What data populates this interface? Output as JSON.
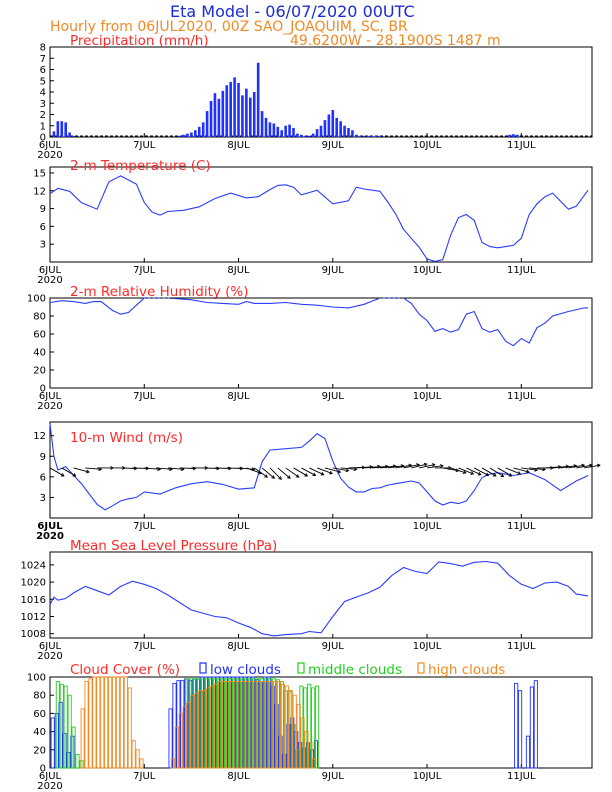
{
  "header": {
    "title": "Eta Model - 06/07/2020 00UTC",
    "subtitle": "Hourly from 06JUL2020, 00Z  SAO_JOAQUIM, SC, BR",
    "coords": "49.6200W - 28.1900S   1487  m"
  },
  "colors": {
    "title": "#1a2bd8",
    "label": "#ff2a2a",
    "orange": "#f08a24",
    "line": "#2a3cff",
    "low": "#2030ff",
    "mid": "#20d020",
    "high": "#f08a24"
  },
  "chart_data": [
    {
      "type": "bar",
      "title": "Precipitation (mm/h)",
      "ylim": [
        0,
        8
      ],
      "yticks": [
        "0",
        "1",
        "2",
        "3",
        "4",
        "5",
        "6",
        "7",
        "8"
      ],
      "xticks": [
        "6JUL",
        "7JUL",
        "8JUL",
        "9JUL",
        "10JUL",
        "11JUL"
      ],
      "xtick_sub": "2020",
      "x_hours": [
        1,
        2,
        3,
        4,
        5,
        6,
        33,
        34,
        35,
        36,
        37,
        38,
        39,
        40,
        41,
        42,
        43,
        44,
        45,
        46,
        47,
        48,
        49,
        50,
        51,
        52,
        53,
        54,
        55,
        56,
        57,
        58,
        59,
        60,
        61,
        62,
        63,
        64,
        65,
        66,
        67,
        68,
        69,
        70,
        71,
        72,
        73,
        74,
        75,
        76,
        77,
        78,
        79,
        80,
        81,
        82,
        83,
        84,
        117,
        118,
        119
      ],
      "values": [
        0.5,
        1.4,
        1.4,
        1.3,
        0.4,
        0.1,
        0.1,
        0.2,
        0.3,
        0.4,
        0.6,
        0.9,
        1.3,
        2.3,
        3.2,
        3.9,
        3.4,
        4.1,
        4.6,
        4.9,
        5.3,
        4.8,
        3.7,
        4.3,
        3.5,
        4.0,
        6.6,
        2.3,
        1.7,
        1.3,
        1.2,
        0.9,
        0.6,
        1.0,
        1.1,
        0.8,
        0.3,
        0.2,
        0.1,
        0.1,
        0.3,
        0.7,
        1.0,
        1.5,
        2.0,
        2.4,
        1.7,
        1.4,
        1.0,
        0.8,
        0.6,
        0.2,
        0.1,
        0.1,
        0.1,
        0.1,
        0.1,
        0.1,
        0.2,
        0.25,
        0.2
      ]
    },
    {
      "type": "line",
      "title": "2-m Temperature (C)",
      "ylim": [
        0,
        16
      ],
      "yticks": [
        "3",
        "6",
        "9",
        "12",
        "15"
      ],
      "xticks": [
        "6JUL",
        "7JUL",
        "8JUL",
        "9JUL",
        "10JUL",
        "11JUL"
      ],
      "xtick_sub": "2020",
      "x": [
        0,
        2,
        5,
        8,
        12,
        15,
        18,
        22,
        24,
        26,
        28,
        30,
        34,
        38,
        42,
        46,
        50,
        53,
        56,
        58,
        60,
        62,
        64,
        68,
        72,
        76,
        78,
        80,
        84,
        86,
        88,
        90,
        92,
        94,
        96,
        98,
        100,
        102,
        104,
        106,
        108,
        110,
        112,
        114,
        116,
        118,
        120,
        122,
        124,
        126,
        128,
        132,
        134,
        137
      ],
      "values": [
        11.5,
        12.4,
        11.9,
        10.0,
        8.9,
        13.5,
        14.5,
        13.1,
        10.0,
        8.4,
        7.9,
        8.5,
        8.7,
        9.3,
        10.7,
        11.6,
        10.8,
        11.0,
        12.2,
        12.9,
        13.0,
        12.6,
        11.3,
        12.1,
        9.8,
        10.3,
        12.6,
        12.3,
        11.9,
        10.1,
        8.1,
        5.5,
        4.0,
        2.5,
        0.5,
        0.1,
        0.4,
        4.5,
        7.5,
        8.0,
        7.0,
        3.3,
        2.6,
        2.4,
        2.6,
        2.8,
        4.0,
        8.0,
        9.8,
        11.0,
        11.6,
        8.9,
        9.4,
        12.1
      ]
    },
    {
      "type": "line",
      "title": "2-m Relative Humidity (%)",
      "ylim": [
        0,
        100
      ],
      "yticks": [
        "0",
        "20",
        "40",
        "60",
        "80",
        "100"
      ],
      "xticks": [
        "6JUL",
        "7JUL",
        "8JUL",
        "9JUL",
        "10JUL",
        "11JUL"
      ],
      "xtick_sub": "2020",
      "x": [
        0,
        3,
        6,
        9,
        11,
        13,
        16,
        18,
        20,
        22,
        24,
        26,
        30,
        36,
        40,
        44,
        48,
        50,
        52,
        56,
        60,
        64,
        68,
        72,
        76,
        80,
        84,
        88,
        90,
        92,
        94,
        96,
        98,
        100,
        102,
        104,
        106,
        108,
        110,
        112,
        114,
        116,
        118,
        120,
        122,
        124,
        126,
        128,
        132,
        136,
        137
      ],
      "values": [
        95,
        97,
        96,
        94,
        96,
        96,
        86,
        82,
        84,
        92,
        100,
        100,
        100,
        98,
        95,
        94,
        93,
        96,
        94,
        94,
        95,
        93,
        92,
        90,
        89,
        93,
        100,
        100,
        100,
        94,
        82,
        75,
        63,
        66,
        62,
        65,
        82,
        85,
        66,
        62,
        65,
        52,
        47,
        55,
        50,
        67,
        72,
        80,
        85,
        89,
        89
      ]
    },
    {
      "type": "line",
      "title": "10-m Wind (m/s)",
      "ylim": [
        0,
        14
      ],
      "yticks": [
        "3",
        "6",
        "9",
        "12"
      ],
      "xticks": [
        "6JUL",
        "7JUL",
        "8JUL",
        "9JUL",
        "10JUL",
        "11JUL"
      ],
      "xtick_sub": "2020",
      "x": [
        0,
        1,
        2,
        4,
        8,
        10,
        12,
        14,
        16,
        18,
        20,
        22,
        24,
        28,
        32,
        36,
        40,
        44,
        48,
        52,
        54,
        56,
        60,
        64,
        66,
        68,
        70,
        72,
        74,
        76,
        78,
        80,
        82,
        84,
        86,
        88,
        90,
        92,
        94,
        96,
        98,
        100,
        102,
        104,
        106,
        108,
        110,
        112,
        114,
        118,
        122,
        126,
        130,
        134,
        137
      ],
      "values": [
        13.7,
        9,
        7,
        7.5,
        5,
        3.5,
        2.0,
        1.2,
        1.8,
        2.5,
        2.8,
        3.0,
        3.8,
        3.5,
        4.4,
        5.0,
        5.3,
        4.9,
        4.2,
        4.4,
        8.2,
        9.9,
        10.1,
        10.3,
        11.2,
        12.3,
        11.6,
        8.3,
        5.8,
        4.5,
        3.8,
        3.8,
        4.3,
        4.4,
        4.8,
        5.0,
        5.2,
        5.4,
        5.1,
        3.8,
        2.5,
        1.9,
        2.3,
        2.1,
        2.5,
        4.0,
        5.9,
        6.4,
        6.6,
        6.2,
        6.6,
        5.6,
        4.0,
        5.4,
        6.2
      ]
    },
    {
      "type": "line",
      "title": "Mean Sea Level Pressure (hPa)",
      "ylim": [
        1007,
        1027
      ],
      "yticks": [
        "1008",
        "1012",
        "1016",
        "1020",
        "1024"
      ],
      "xticks": [
        "6JUL",
        "7JUL",
        "8JUL",
        "9JUL",
        "10JUL",
        "11JUL"
      ],
      "xtick_sub": "2020",
      "x": [
        0,
        1,
        2,
        3,
        4,
        6,
        9,
        12,
        15,
        18,
        21,
        24,
        27,
        30,
        36,
        42,
        45,
        48,
        51,
        54,
        57,
        60,
        64,
        66,
        69,
        72,
        75,
        78,
        81,
        84,
        87,
        90,
        93,
        96,
        99,
        102,
        105,
        108,
        111,
        114,
        117,
        120,
        123,
        126,
        129,
        132,
        134,
        137
      ],
      "values": [
        1014.8,
        1016.5,
        1015.8,
        1016,
        1016.2,
        1017.5,
        1019,
        1018,
        1017,
        1019,
        1020.2,
        1019.5,
        1018.5,
        1017,
        1013.5,
        1012,
        1011.7,
        1010.5,
        1009.5,
        1008,
        1007.5,
        1007.8,
        1008,
        1008.5,
        1008.2,
        1012,
        1015.5,
        1016.5,
        1017.5,
        1018.8,
        1021.5,
        1023.4,
        1022.5,
        1022,
        1024.7,
        1024.3,
        1023.7,
        1024.6,
        1024.8,
        1024.4,
        1021.5,
        1019.5,
        1018.5,
        1019.8,
        1020,
        1019,
        1017.2,
        1016.8
      ]
    },
    {
      "type": "bar",
      "title": "Cloud Cover (%)",
      "ylim": [
        0,
        100
      ],
      "yticks": [
        "0",
        "20",
        "40",
        "60",
        "80",
        "100"
      ],
      "xticks": [
        "6JUL",
        "7JUL",
        "8JUL",
        "9JUL",
        "10JUL",
        "11JUL"
      ],
      "xtick_sub": "2020",
      "legend": [
        "low clouds",
        "middle clouds",
        "high clouds"
      ],
      "series": [
        {
          "name": "low clouds",
          "x": [
            1,
            2,
            3,
            4,
            5,
            6,
            31,
            32,
            33,
            34,
            35,
            36,
            37,
            38,
            39,
            40,
            41,
            42,
            43,
            44,
            45,
            46,
            47,
            48,
            49,
            50,
            51,
            52,
            53,
            54,
            55,
            56,
            57,
            58,
            59,
            60,
            61,
            62,
            63,
            64,
            65,
            66,
            67,
            68,
            119,
            120,
            122,
            123,
            124
          ],
          "values": [
            55,
            60,
            72,
            38,
            17,
            35,
            65,
            93,
            96,
            96,
            98,
            96,
            98,
            98,
            100,
            100,
            100,
            100,
            100,
            100,
            100,
            100,
            100,
            100,
            100,
            100,
            100,
            100,
            97,
            94,
            100,
            100,
            90,
            70,
            35,
            15,
            48,
            55,
            40,
            28,
            22,
            28,
            20,
            30,
            93,
            85,
            35,
            89,
            96
          ]
        },
        {
          "name": "middle clouds",
          "x": [
            2,
            3,
            4,
            5,
            6,
            7,
            8,
            35,
            36,
            37,
            38,
            39,
            40,
            41,
            42,
            43,
            44,
            45,
            46,
            47,
            48,
            49,
            50,
            51,
            52,
            53,
            54,
            55,
            56,
            57,
            58,
            59,
            60,
            61,
            62,
            63,
            64,
            65,
            66,
            67,
            68
          ],
          "values": [
            95,
            92,
            90,
            80,
            45,
            15,
            8,
            98,
            98,
            98,
            98,
            98,
            98,
            98,
            98,
            98,
            98,
            98,
            98,
            98,
            98,
            98,
            98,
            98,
            98,
            98,
            98,
            98,
            98,
            98,
            97,
            95,
            85,
            84,
            48,
            20,
            90,
            88,
            92,
            88,
            90
          ]
        },
        {
          "name": "high clouds",
          "x": [
            8,
            9,
            10,
            11,
            12,
            13,
            14,
            15,
            16,
            17,
            18,
            19,
            20,
            21,
            22,
            23,
            31,
            32,
            33,
            34,
            35,
            36,
            37,
            38,
            39,
            40,
            41,
            42,
            43,
            44,
            45,
            46,
            47,
            48,
            49,
            50,
            51,
            52,
            53,
            54,
            55,
            56,
            57,
            58,
            59,
            60,
            61,
            62,
            63,
            64,
            65,
            66,
            67
          ],
          "values": [
            65,
            95,
            98,
            100,
            100,
            100,
            100,
            100,
            100,
            100,
            100,
            100,
            88,
            30,
            20,
            10,
            10,
            45,
            60,
            68,
            72,
            80,
            82,
            85,
            85,
            88,
            90,
            92,
            95,
            95,
            95,
            95,
            95,
            95,
            95,
            95,
            95,
            95,
            95,
            95,
            95,
            95,
            95,
            95,
            92,
            90,
            85,
            80,
            70,
            55,
            40,
            28,
            10
          ]
        }
      ]
    }
  ],
  "wind_barbs": [
    {
      "hour": 0,
      "deg": 120
    },
    {
      "hour": 3,
      "deg": 120
    },
    {
      "hour": 6,
      "deg": 105
    },
    {
      "hour": 9,
      "deg": 95
    },
    {
      "hour": 12,
      "deg": 90
    },
    {
      "hour": 15,
      "deg": 90
    },
    {
      "hour": 18,
      "deg": 92
    },
    {
      "hour": 21,
      "deg": 92
    },
    {
      "hour": 24,
      "deg": 95
    },
    {
      "hour": 27,
      "deg": 95
    },
    {
      "hour": 30,
      "deg": 95
    },
    {
      "hour": 33,
      "deg": 92
    },
    {
      "hour": 36,
      "deg": 90
    },
    {
      "hour": 39,
      "deg": 92
    },
    {
      "hour": 42,
      "deg": 92
    },
    {
      "hour": 45,
      "deg": 92
    },
    {
      "hour": 48,
      "deg": 95
    },
    {
      "hour": 50,
      "deg": 110
    },
    {
      "hour": 52,
      "deg": 125
    },
    {
      "hour": 54,
      "deg": 130
    },
    {
      "hour": 56,
      "deg": 135
    },
    {
      "hour": 58,
      "deg": 130
    },
    {
      "hour": 60,
      "deg": 125
    },
    {
      "hour": 62,
      "deg": 120
    },
    {
      "hour": 64,
      "deg": 118
    },
    {
      "hour": 66,
      "deg": 115
    },
    {
      "hour": 68,
      "deg": 110
    },
    {
      "hour": 70,
      "deg": 105
    },
    {
      "hour": 72,
      "deg": 100
    },
    {
      "hour": 74,
      "deg": 95
    },
    {
      "hour": 76,
      "deg": 88
    },
    {
      "hour": 78,
      "deg": 86
    },
    {
      "hour": 80,
      "deg": 85
    },
    {
      "hour": 82,
      "deg": 84
    },
    {
      "hour": 84,
      "deg": 83
    },
    {
      "hour": 86,
      "deg": 82
    },
    {
      "hour": 88,
      "deg": 80
    },
    {
      "hour": 90,
      "deg": 78
    },
    {
      "hour": 92,
      "deg": 76
    },
    {
      "hour": 94,
      "deg": 78
    },
    {
      "hour": 96,
      "deg": 82
    },
    {
      "hour": 98,
      "deg": 90
    },
    {
      "hour": 100,
      "deg": 100
    },
    {
      "hour": 102,
      "deg": 108
    },
    {
      "hour": 104,
      "deg": 112
    },
    {
      "hour": 106,
      "deg": 115
    },
    {
      "hour": 108,
      "deg": 118
    },
    {
      "hour": 110,
      "deg": 120
    },
    {
      "hour": 112,
      "deg": 122
    },
    {
      "hour": 114,
      "deg": 120
    },
    {
      "hour": 116,
      "deg": 112
    },
    {
      "hour": 118,
      "deg": 105
    },
    {
      "hour": 120,
      "deg": 98
    },
    {
      "hour": 122,
      "deg": 96
    },
    {
      "hour": 124,
      "deg": 90
    },
    {
      "hour": 126,
      "deg": 86
    },
    {
      "hour": 128,
      "deg": 84
    },
    {
      "hour": 130,
      "deg": 82
    },
    {
      "hour": 132,
      "deg": 80
    },
    {
      "hour": 134,
      "deg": 80
    },
    {
      "hour": 136,
      "deg": 80
    }
  ]
}
